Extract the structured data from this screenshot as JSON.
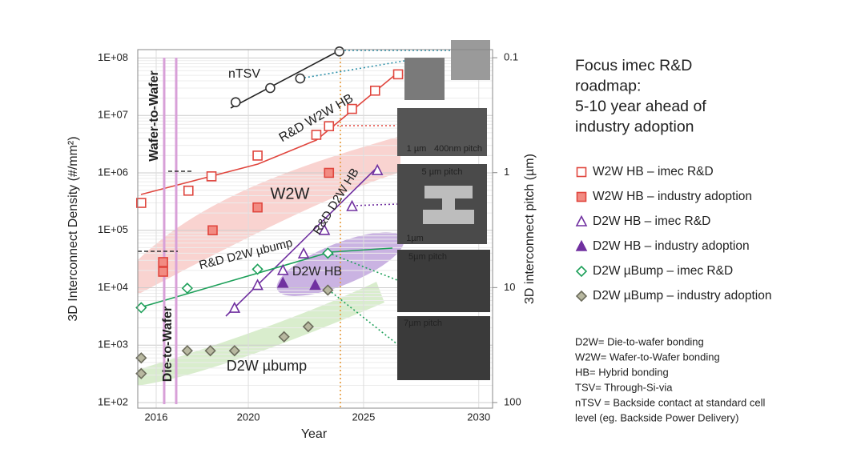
{
  "chart_data": {
    "type": "scatter",
    "xlabel": "Year",
    "ylabel": "3D Interconnect Density (#/mm²)",
    "y2label": "3D interconnect pitch (µm)",
    "xlim": [
      2015.2,
      2030.6
    ],
    "xticks": [
      2016,
      2020,
      2025,
      2030
    ],
    "ylim": [
      80,
      140000000
    ],
    "ylog": true,
    "yticks": [
      {
        "value": 100,
        "label": "1E+02"
      },
      {
        "value": 1000,
        "label": "1E+03"
      },
      {
        "value": 10000,
        "label": "1E+04"
      },
      {
        "value": 100000,
        "label": "1E+05"
      },
      {
        "value": 1000000,
        "label": "1E+06"
      },
      {
        "value": 10000000,
        "label": "1E+07"
      },
      {
        "value": 100000000,
        "label": "1E+08"
      }
    ],
    "y2lim": [
      0.085,
      112
    ],
    "y2log": true,
    "y2inverted": true,
    "y2ticks": [
      0.1,
      1,
      10,
      100
    ],
    "grid": true,
    "series": [
      {
        "name": "W2W HB – imec R&D",
        "color": "#e0463e",
        "marker": "square",
        "filled": false,
        "x": [
          2015.35,
          2017.4,
          2018.4,
          2020.4,
          2022.95,
          2023.5,
          2024.5,
          2025.5,
          2026.5
        ],
        "values": [
          300000,
          490000,
          870000,
          2000000,
          4600000,
          6500000,
          13000000,
          27000000,
          52000000
        ]
      },
      {
        "name": "W2W HB – industry adoption",
        "color": "#e0463e",
        "marker": "square",
        "filled": true,
        "x": [
          2016.3,
          2016.3,
          2018.45,
          2020.4,
          2023.5
        ],
        "values": [
          28000,
          19000,
          100000,
          250000,
          1000000
        ]
      },
      {
        "name": "D2W HB – imec R&D",
        "color": "#7030a0",
        "marker": "triangle",
        "filled": false,
        "x": [
          2019.4,
          2020.4,
          2021.5,
          2022.4,
          2023.3,
          2024.5,
          2025.6
        ],
        "values": [
          4400,
          11000,
          20000,
          39000,
          100000,
          260000,
          1100000
        ]
      },
      {
        "name": "D2W HB – industry adoption",
        "color": "#7030a0",
        "marker": "triangle",
        "filled": true,
        "x": [
          2021.5,
          2022.9
        ],
        "values": [
          12000,
          11000
        ]
      },
      {
        "name": "D2W µBump – imec R&D",
        "color": "#1ea05a",
        "marker": "diamond",
        "filled": false,
        "x": [
          2015.35,
          2017.35,
          2020.4,
          2023.45
        ],
        "values": [
          4500,
          9800,
          21000,
          40000
        ]
      },
      {
        "name": "D2W µBump – industry adoption",
        "color": "#8a8a7a",
        "marker": "diamond",
        "filled": true,
        "x": [
          2015.35,
          2015.35,
          2017.35,
          2018.35,
          2019.4,
          2021.55,
          2022.6,
          2023.45
        ],
        "values": [
          600,
          320,
          800,
          800,
          800,
          1400,
          2100,
          9100
        ]
      },
      {
        "name": "nTSV",
        "color": "#333333",
        "marker": "circle",
        "filled": false,
        "legend": false,
        "x": [
          2019.45,
          2020.95,
          2022.25,
          2023.95
        ],
        "values": [
          17000000,
          30000000,
          44000000,
          130000000
        ]
      }
    ],
    "annotations": [
      "R&D W2W HB",
      "W2W",
      "R&D D2W HB",
      "D2W HB",
      "R&D D2W µbump",
      "D2W µbump",
      "Wafer-to-Wafer",
      "Die-to-Wafer",
      "5 µm pitch",
      "1µm",
      "5µm pitch",
      "7µm pitch",
      "1 µm",
      "400nm pitch"
    ]
  },
  "side": {
    "title": [
      "Focus imec R&D",
      "roadmap:",
      "5-10 year ahead of",
      "industry adoption"
    ],
    "notes": [
      "D2W= Die-to-wafer bonding",
      "W2W= Wafer-to-Wafer bonding",
      "HB= Hybrid bonding",
      "TSV= Through-Si-via",
      "nTSV = Backside contact at standard cell",
      "level (eg. Backside Power Delivery)"
    ]
  }
}
